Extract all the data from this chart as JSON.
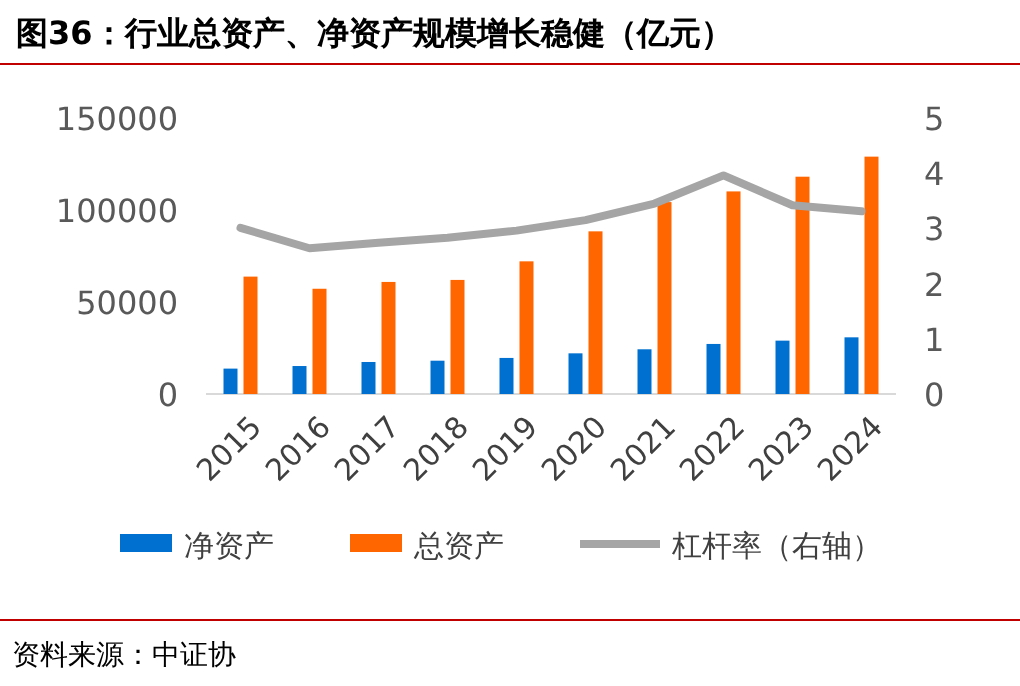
{
  "chart_data": {
    "type": "bar",
    "title": "图36：行业总资产、净资产规模增长稳健（亿元）",
    "categories": [
      "2015",
      "2016",
      "2017",
      "2018",
      "2019",
      "2020",
      "2021",
      "2022",
      "2023",
      "2024"
    ],
    "series": [
      {
        "name": "净资产",
        "color": "#0070d0",
        "values": [
          13800,
          15200,
          17400,
          18100,
          19600,
          22100,
          24300,
          27200,
          29000,
          30800
        ]
      },
      {
        "name": "总资产",
        "color": "#ff6600",
        "values": [
          63800,
          57200,
          60900,
          62000,
          72100,
          88400,
          104300,
          110100,
          118100,
          129000
        ]
      },
      {
        "name": "杠杆率（右轴）",
        "type": "line",
        "axis": "y2",
        "color": "#a5a5a5",
        "values": [
          3.01,
          2.64,
          2.74,
          2.83,
          2.96,
          3.15,
          3.45,
          3.96,
          3.42,
          3.31
        ]
      }
    ],
    "ylim": [
      0,
      150000
    ],
    "yticks": [
      0,
      50000,
      100000,
      150000
    ],
    "y2lim": [
      0,
      5
    ],
    "y2ticks": [
      0,
      1,
      2,
      3,
      4,
      5
    ],
    "legend": "bottom",
    "grid": false,
    "marker": "none",
    "line_style": "solid",
    "annotations": [
      "资料来源：中证协"
    ]
  }
}
